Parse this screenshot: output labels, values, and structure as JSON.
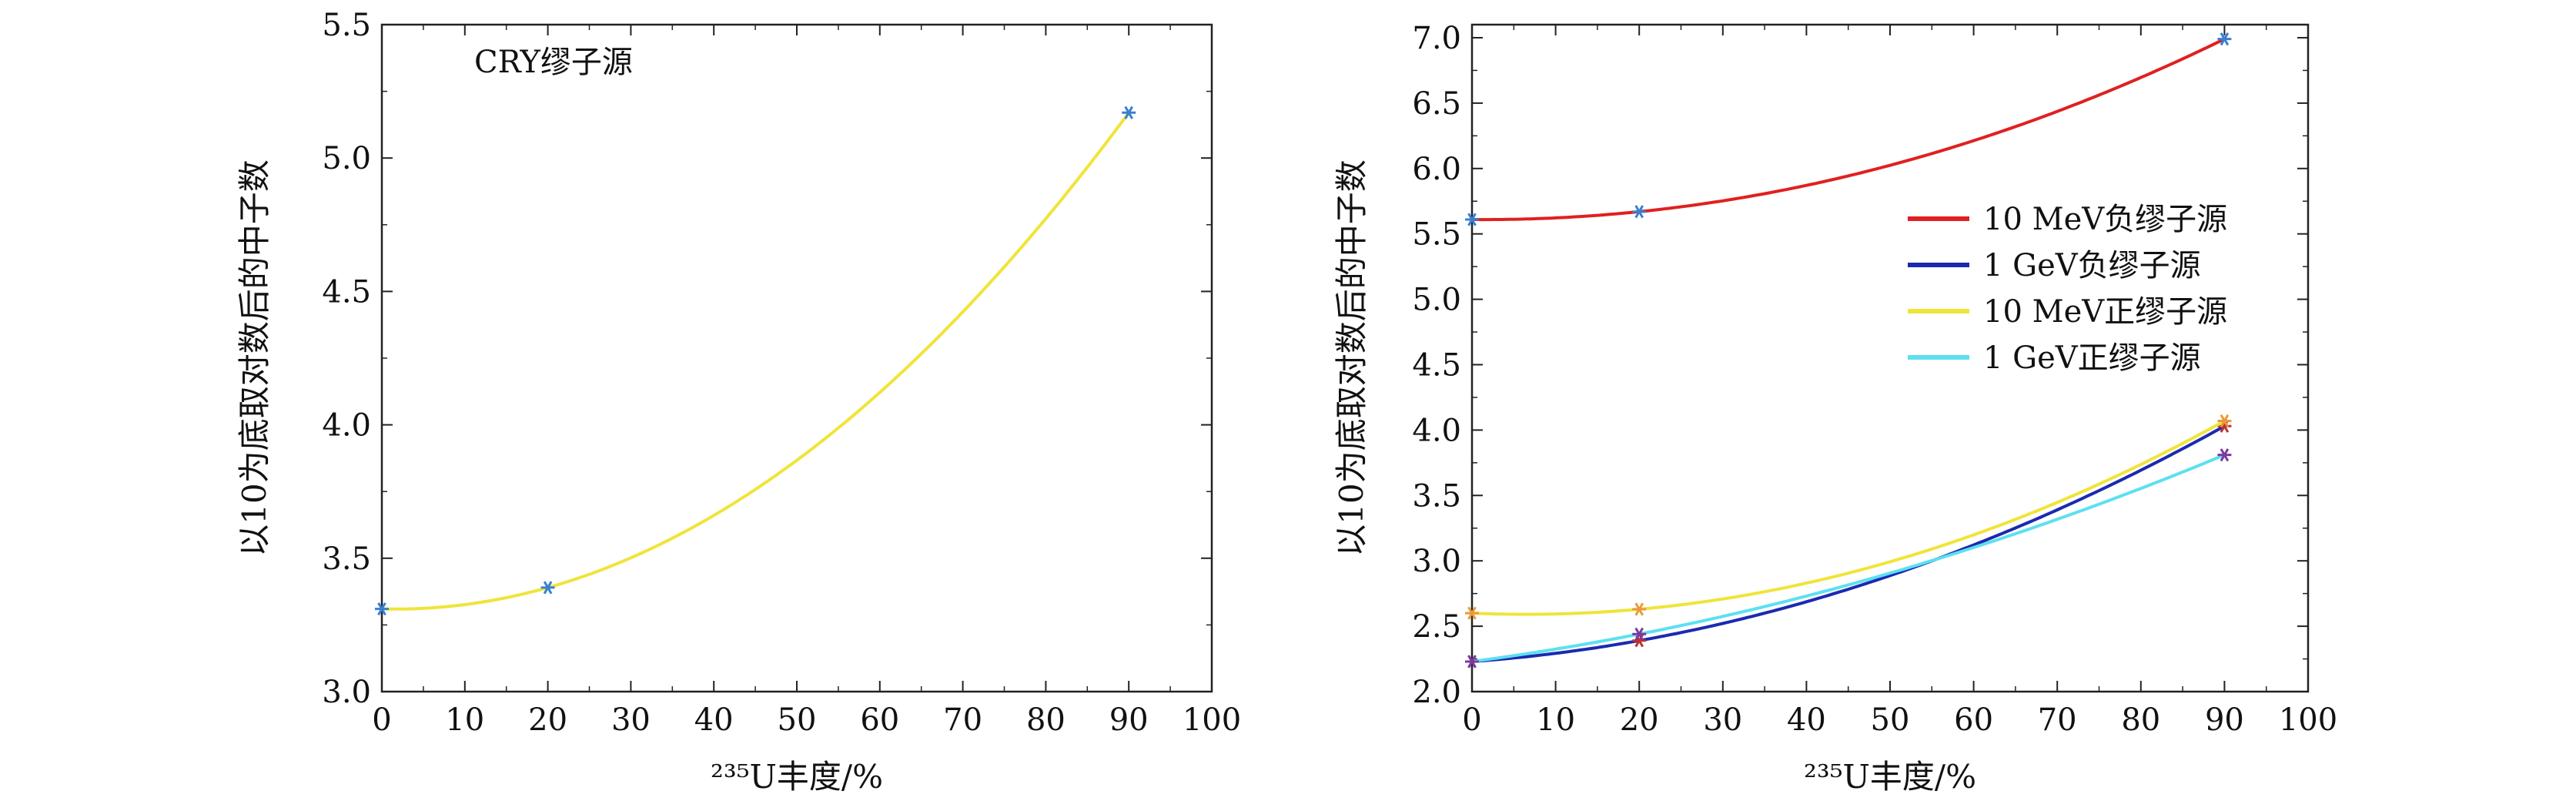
{
  "chart_data": [
    {
      "type": "line",
      "title": "",
      "xlabel": "²³⁵U丰度/%",
      "ylabel": "以10为底取对数后的中子数",
      "xlim": [
        0,
        100
      ],
      "ylim": [
        3.0,
        5.5
      ],
      "xticks": [
        0,
        10,
        20,
        30,
        40,
        50,
        60,
        70,
        80,
        90,
        100
      ],
      "yticks": [
        "3.0",
        "3.5",
        "4.0",
        "4.5",
        "5.0",
        "5.5"
      ],
      "annotation": "CRY缪子源",
      "grid": false,
      "series": [
        {
          "name": "",
          "color": "#f0e43a",
          "marker_color": "#3a7fd0",
          "x": [
            0,
            20,
            90
          ],
          "y": [
            3.31,
            3.39,
            5.17
          ]
        }
      ]
    },
    {
      "type": "line",
      "title": "",
      "xlabel": "²³⁵U丰度/%",
      "ylabel": "以10为底取对数后的中子数",
      "xlim": [
        0,
        100
      ],
      "ylim": [
        2.0,
        7.1
      ],
      "xticks": [
        0,
        10,
        20,
        30,
        40,
        50,
        60,
        70,
        80,
        90,
        100
      ],
      "yticks": [
        "2.0",
        "2.5",
        "3.0",
        "3.5",
        "4.0",
        "4.5",
        "5.0",
        "5.5",
        "6.0",
        "6.5",
        "7.0"
      ],
      "grid": false,
      "legend_position": "center-right",
      "series": [
        {
          "name": "10 MeV负缪子源",
          "color": "#e02020",
          "marker_color": "#3a7fd0",
          "x": [
            0,
            20,
            90
          ],
          "y": [
            5.61,
            5.67,
            6.99
          ]
        },
        {
          "name": "1 GeV负缪子源",
          "color": "#1a2ab0",
          "marker_color": "#c03030",
          "x": [
            0,
            20,
            90
          ],
          "y": [
            2.23,
            2.39,
            4.03
          ]
        },
        {
          "name": "10 MeV正缪子源",
          "color": "#f0e43a",
          "marker_color": "#e89a3a",
          "x": [
            0,
            20,
            90
          ],
          "y": [
            2.6,
            2.63,
            4.07
          ]
        },
        {
          "name": "1 GeV正缪子源",
          "color": "#5de0f0",
          "marker_color": "#7a3aa0",
          "x": [
            0,
            20,
            90
          ],
          "y": [
            2.23,
            2.44,
            3.81
          ]
        }
      ]
    }
  ]
}
